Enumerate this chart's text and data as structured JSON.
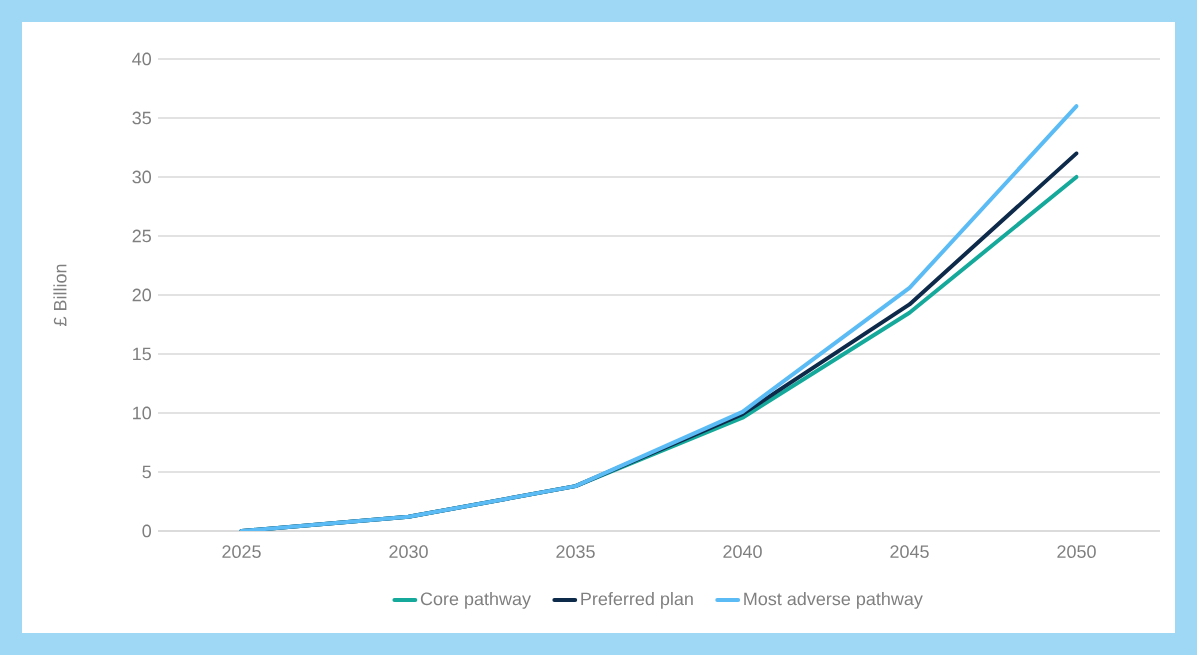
{
  "chart_data": {
    "type": "line",
    "ylabel": "£ Billion",
    "categories": [
      "2025",
      "2030",
      "2035",
      "2040",
      "2045",
      "2050"
    ],
    "series": [
      {
        "name": "Core pathway",
        "color": "#14a99a",
        "values": [
          0,
          1.2,
          3.8,
          9.6,
          18.5,
          30
        ]
      },
      {
        "name": "Preferred plan",
        "color": "#0e2a4a",
        "values": [
          0,
          1.2,
          3.8,
          9.9,
          19.2,
          32
        ]
      },
      {
        "name": "Most adverse pathway",
        "color": "#5bbcf5",
        "values": [
          0,
          1.2,
          3.8,
          10.1,
          20.6,
          36
        ]
      }
    ],
    "ylim": [
      0,
      40
    ],
    "yticks": [
      0,
      5,
      10,
      15,
      20,
      25,
      30,
      35,
      40
    ],
    "grid": "y",
    "legend": "bottom"
  }
}
